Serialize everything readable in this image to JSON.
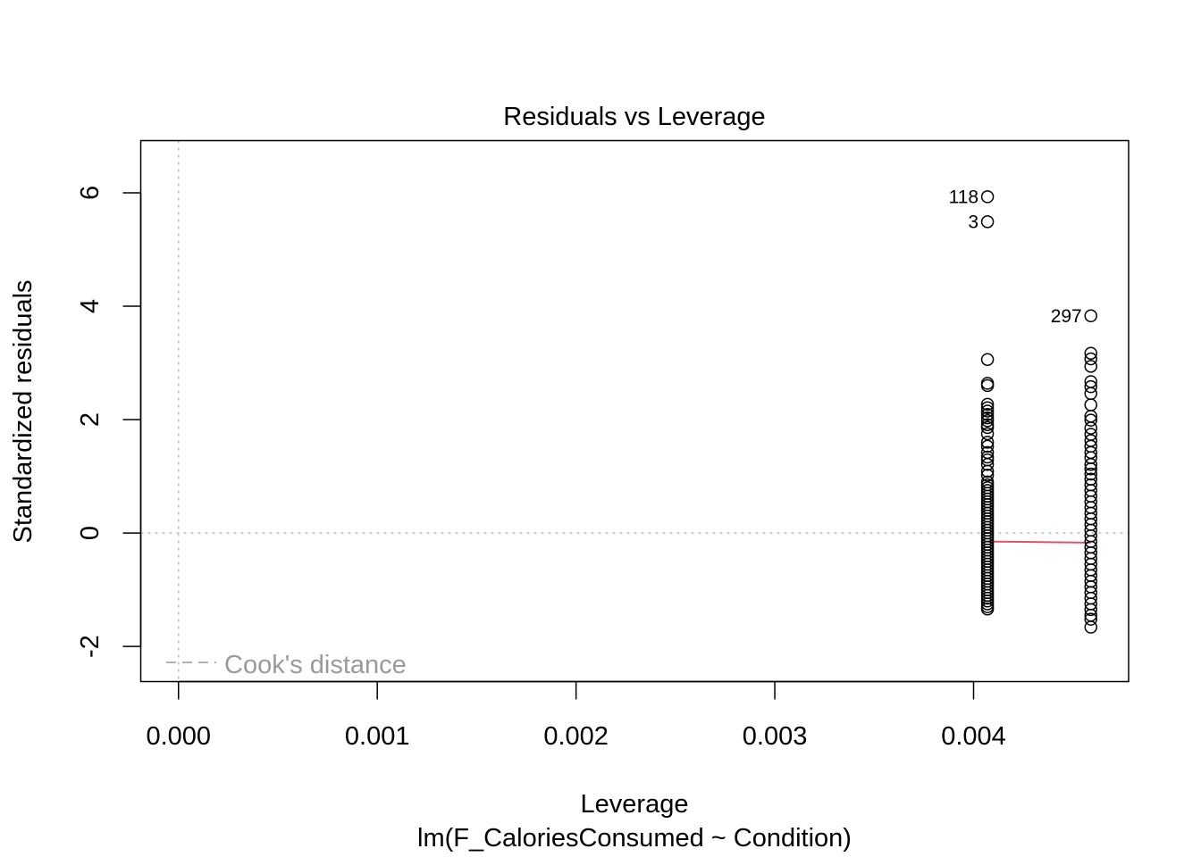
{
  "chart_data": {
    "type": "scatter",
    "title": "Residuals vs Leverage",
    "xlabel": "Leverage",
    "sublabel": "lm(F_CaloriesConsumed ~ Condition)",
    "ylabel": "Standardized residuals",
    "xlim": [
      -0.00019,
      0.00478
    ],
    "ylim": [
      -2.62,
      6.92
    ],
    "x_ticks": [
      {
        "value": 0.0,
        "label": "0.000"
      },
      {
        "value": 0.001,
        "label": "0.001"
      },
      {
        "value": 0.002,
        "label": "0.002"
      },
      {
        "value": 0.003,
        "label": "0.003"
      },
      {
        "value": 0.004,
        "label": "0.004"
      }
    ],
    "y_ticks": [
      {
        "value": -2,
        "label": "-2"
      },
      {
        "value": 0,
        "label": "0"
      },
      {
        "value": 2,
        "label": "2"
      },
      {
        "value": 4,
        "label": "4"
      },
      {
        "value": 6,
        "label": "6"
      }
    ],
    "reference_lines": {
      "h": 0,
      "v": 0,
      "color": "#bebebe"
    },
    "legend": {
      "label": "Cook's distance",
      "placement": "bottom-left",
      "color": "#9a9a9a"
    },
    "point_color": "#000000",
    "smooth_color": "#df536b",
    "smooth_line": [
      {
        "x": 0.00407,
        "y": -0.15
      },
      {
        "x": 0.00459,
        "y": -0.17
      }
    ],
    "labeled_points": [
      {
        "label": "118",
        "x": 0.00407,
        "y": 5.93
      },
      {
        "label": "3",
        "x": 0.00407,
        "y": 5.49
      },
      {
        "label": "297",
        "x": 0.00459,
        "y": 3.83
      }
    ],
    "series": [
      {
        "x": 0.00407,
        "y": [
          3.06,
          2.64,
          2.6,
          2.27,
          2.21,
          2.15,
          2.09,
          2.03,
          1.98,
          1.91,
          1.86,
          1.75,
          1.6,
          1.53,
          1.42,
          1.34,
          1.29,
          1.21,
          1.09,
          1.02,
          0.9,
          0.85,
          0.8,
          0.75,
          0.7,
          0.65,
          0.6,
          0.55,
          0.5,
          0.45,
          0.4,
          0.35,
          0.3,
          0.25,
          0.2,
          0.15,
          0.1,
          0.05,
          0.0,
          -0.05,
          -0.1,
          -0.15,
          -0.2,
          -0.25,
          -0.3,
          -0.35,
          -0.4,
          -0.45,
          -0.5,
          -0.55,
          -0.6,
          -0.65,
          -0.7,
          -0.75,
          -0.8,
          -0.85,
          -0.9,
          -0.95,
          -1.0,
          -1.05,
          -1.1,
          -1.15,
          -1.2,
          -1.25,
          -1.3,
          -1.34
        ]
      },
      {
        "x": 0.00459,
        "y": [
          3.17,
          3.07,
          2.94,
          2.67,
          2.58,
          2.46,
          2.26,
          2.06,
          1.99,
          1.85,
          1.74,
          1.63,
          1.53,
          1.42,
          1.33,
          1.21,
          1.13,
          1.04,
          0.95,
          0.85,
          0.75,
          0.65,
          0.55,
          0.45,
          0.35,
          0.25,
          0.15,
          0.05,
          -0.05,
          -0.15,
          -0.25,
          -0.35,
          -0.45,
          -0.55,
          -0.65,
          -0.75,
          -0.85,
          -0.95,
          -1.05,
          -1.15,
          -1.25,
          -1.35,
          -1.45,
          -1.52,
          -1.66
        ]
      }
    ]
  }
}
